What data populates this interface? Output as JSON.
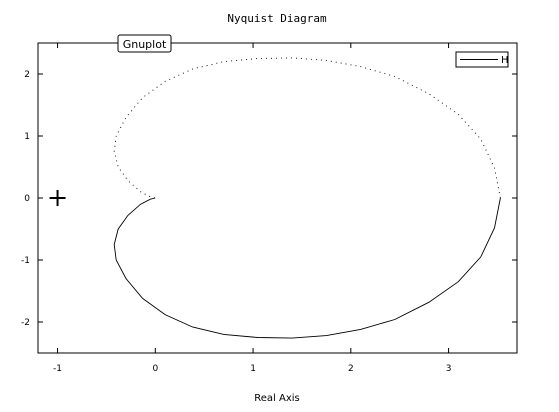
{
  "badge": {
    "label": "Gnuplot"
  },
  "chart_data": {
    "type": "line",
    "title": "Nyquist Diagram",
    "xlabel": "Real Axis",
    "ylabel": "",
    "xlim": [
      -1.2,
      3.7
    ],
    "ylim": [
      -2.5,
      2.5
    ],
    "xticks": [
      -1,
      0,
      1,
      2,
      3
    ],
    "xtick_labels": [
      "-1",
      "0",
      "1",
      "2",
      "3"
    ],
    "yticks": [
      -2,
      -1,
      0,
      1,
      2
    ],
    "ytick_labels": [
      "-2",
      "-1",
      "0",
      "1",
      "2"
    ],
    "grid": false,
    "legend_position": "top-right",
    "critical_point": {
      "x": -1,
      "y": 0,
      "marker": "+"
    },
    "series": [
      {
        "name": "H",
        "style": "solid",
        "x": [
          0.0,
          -0.05,
          -0.15,
          -0.28,
          -0.38,
          -0.42,
          -0.4,
          -0.3,
          -0.13,
          0.1,
          0.38,
          0.7,
          1.05,
          1.4,
          1.75,
          2.1,
          2.45,
          2.8,
          3.1,
          3.33,
          3.47,
          3.53
        ],
        "y": [
          0.0,
          -0.02,
          -0.1,
          -0.28,
          -0.5,
          -0.75,
          -1.0,
          -1.3,
          -1.62,
          -1.88,
          -2.08,
          -2.2,
          -2.25,
          -2.26,
          -2.22,
          -2.12,
          -1.96,
          -1.68,
          -1.35,
          -0.95,
          -0.48,
          0.0
        ]
      },
      {
        "name": "",
        "style": "dotted",
        "x": [
          3.53,
          3.47,
          3.33,
          3.1,
          2.8,
          2.45,
          2.1,
          1.75,
          1.4,
          1.05,
          0.7,
          0.38,
          0.1,
          -0.13,
          -0.3,
          -0.4,
          -0.42,
          -0.38,
          -0.28,
          -0.15,
          -0.05,
          0.0
        ],
        "y": [
          0.0,
          0.48,
          0.95,
          1.35,
          1.68,
          1.96,
          2.12,
          2.22,
          2.26,
          2.25,
          2.2,
          2.08,
          1.88,
          1.62,
          1.3,
          1.0,
          0.75,
          0.5,
          0.28,
          0.1,
          0.02,
          0.0
        ]
      }
    ]
  }
}
